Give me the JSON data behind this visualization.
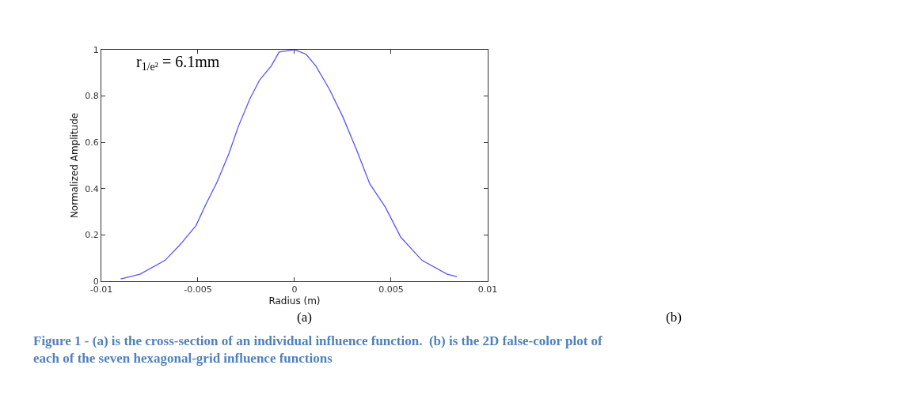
{
  "chart_data": {
    "type": "line",
    "xlabel": "Radius (m)",
    "ylabel": "Normalized Amplitude",
    "x": [
      -0.009,
      -0.008,
      -0.0067,
      -0.0059,
      -0.0051,
      -0.0046,
      -0.004,
      -0.0034,
      -0.0029,
      -0.0023,
      -0.0018,
      -0.0012,
      -0.0008,
      0,
      0.0006,
      0.0011,
      0.0018,
      0.0025,
      0.0032,
      0.0039,
      0.0047,
      0.0055,
      0.0066,
      0.0079,
      0.0084
    ],
    "series": [
      {
        "color": "#5555ff",
        "values": [
          0.01,
          0.03,
          0.09,
          0.16,
          0.24,
          0.33,
          0.43,
          0.55,
          0.67,
          0.79,
          0.87,
          0.93,
          0.99,
          1.0,
          0.98,
          0.93,
          0.83,
          0.71,
          0.57,
          0.42,
          0.32,
          0.19,
          0.09,
          0.03,
          0.02
        ]
      }
    ],
    "xlim": [
      -0.01,
      0.01
    ],
    "xticks": [
      -0.01,
      -0.005,
      0,
      0.005,
      0.01
    ],
    "ylim": [
      0,
      1
    ],
    "yticks": [
      0,
      0.2,
      0.4,
      0.6,
      0.8,
      1
    ],
    "marker": "none",
    "line_style": "solid",
    "annotations": [
      "r$_{1/e²}$ = 6.1mm",
      "(a)",
      "(b)",
      "Figure 1 - (a) is the cross-section of an individual influence function.  (b) is the 2D false-color plot of each of the seven hexagonal-grid influence functions"
    ]
  }
}
